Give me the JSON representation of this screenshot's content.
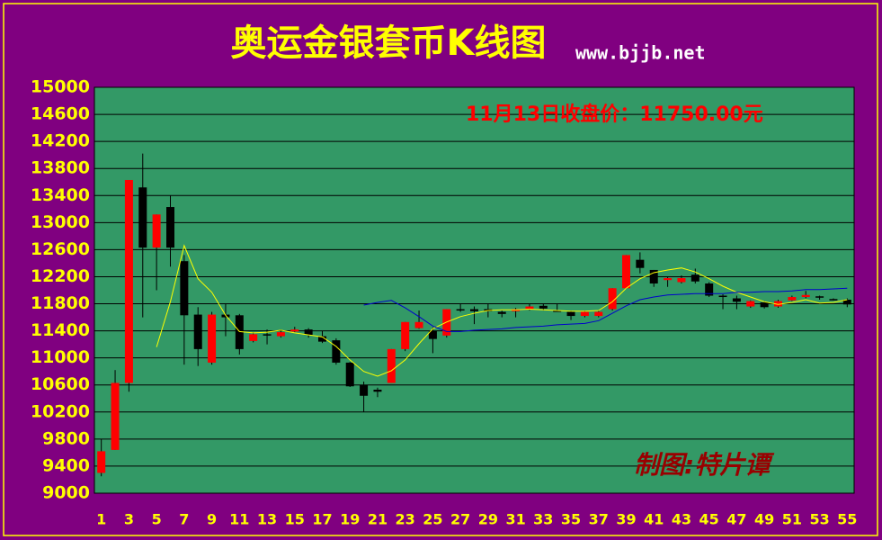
{
  "chart_data": {
    "type": "candlestick",
    "title": "奥运金银套币K线图",
    "site": "www.bjjb.net",
    "annotation": "11月13日收盘价：11750.00元",
    "watermark": "制图:特片谭",
    "categories": [
      "1",
      null,
      "3",
      null,
      "5",
      null,
      "7",
      null,
      "9",
      null,
      "11",
      null,
      "13",
      null,
      "15",
      null,
      "17",
      null,
      "19",
      null,
      "21",
      null,
      "23",
      null,
      "25",
      null,
      "27",
      null,
      "29",
      null,
      "31",
      null,
      "33",
      null,
      "35",
      null,
      "37",
      null,
      "39",
      null,
      "41",
      null,
      "43",
      null,
      "45",
      null,
      "47",
      null,
      "49",
      null,
      "51",
      null,
      "53",
      null,
      "55"
    ],
    "open": [
      9300,
      9640,
      10630,
      13520,
      12630,
      13230,
      12430,
      11640,
      10930,
      11640,
      11630,
      11250,
      11350,
      11320,
      11390,
      11420,
      11320,
      11260,
      10930,
      10600,
      10530,
      10630,
      11130,
      11440,
      11400,
      11330,
      11720,
      11720,
      11720,
      11680,
      11690,
      11720,
      11770,
      11700,
      11680,
      11620,
      11620,
      11720,
      12030,
      12450,
      12300,
      12150,
      12120,
      12230,
      12100,
      11920,
      11880,
      11760,
      11820,
      11760,
      11850,
      11900,
      11910,
      11870,
      11860
    ],
    "high": [
      9800,
      10820,
      13630,
      14020,
      13120,
      13400,
      12520,
      11750,
      11680,
      11800,
      11650,
      11380,
      11420,
      11420,
      11460,
      11440,
      11400,
      11290,
      10940,
      10650,
      10560,
      11130,
      11530,
      11700,
      11450,
      11720,
      11800,
      11760,
      11800,
      11700,
      11740,
      11800,
      11800,
      11800,
      11700,
      11700,
      11700,
      12030,
      12520,
      12560,
      12300,
      12200,
      12220,
      12320,
      12120,
      11940,
      11920,
      11850,
      11840,
      11860,
      11920,
      11990,
      11920,
      11880,
      11880
    ],
    "low": [
      9250,
      9640,
      10500,
      11600,
      12000,
      12350,
      10900,
      10880,
      10900,
      11320,
      11050,
      11230,
      11200,
      11300,
      11380,
      11300,
      11220,
      10900,
      10570,
      10200,
      10420,
      10630,
      11100,
      11430,
      11070,
      11300,
      11680,
      11500,
      11600,
      11600,
      11600,
      11700,
      11700,
      11680,
      11560,
      11600,
      11600,
      11700,
      12020,
      12250,
      12050,
      12050,
      12100,
      12100,
      11900,
      11720,
      11720,
      11740,
      11730,
      11740,
      11840,
      11880,
      11860,
      11850,
      11750
    ],
    "close": [
      9620,
      10630,
      13630,
      12630,
      13120,
      12630,
      11630,
      11130,
      11640,
      11600,
      11130,
      11350,
      11330,
      11380,
      11420,
      11340,
      11240,
      10930,
      10580,
      10440,
      10500,
      11130,
      11530,
      11530,
      11280,
      11720,
      11700,
      11690,
      11690,
      11650,
      11720,
      11760,
      11730,
      11690,
      11620,
      11680,
      11680,
      12030,
      12520,
      12330,
      12100,
      12180,
      12180,
      12130,
      11920,
      11900,
      11830,
      11840,
      11750,
      11840,
      11900,
      11930,
      11890,
      11860,
      11790
    ],
    "up_color": "#ff0000",
    "down_color": "#000000",
    "lines": [
      {
        "color": "#ffff00",
        "values": [
          null,
          null,
          null,
          null,
          11160,
          11830,
          12660,
          12170,
          11970,
          11630,
          11390,
          11370,
          11380,
          11410,
          11370,
          11340,
          11310,
          11170,
          10970,
          10800,
          10730,
          10810,
          10970,
          11210,
          11430,
          11530,
          11610,
          11660,
          11700,
          11710,
          11710,
          11720,
          11710,
          11700,
          11690,
          11690,
          11700,
          11830,
          12030,
          12170,
          12260,
          12300,
          12330,
          12270,
          12170,
          12060,
          11970,
          11900,
          11830,
          11790,
          11820,
          11860,
          11810,
          11820,
          11860
        ]
      },
      {
        "color": "#0000cc",
        "values": [
          null,
          null,
          null,
          null,
          null,
          null,
          null,
          null,
          null,
          null,
          null,
          null,
          null,
          null,
          null,
          null,
          null,
          null,
          null,
          11780,
          11820,
          11850,
          11740,
          11610,
          11470,
          11390,
          11390,
          11410,
          11420,
          11430,
          11450,
          11460,
          11470,
          11490,
          11500,
          11510,
          11550,
          11660,
          11770,
          11860,
          11900,
          11930,
          11940,
          11950,
          11950,
          11950,
          11970,
          11970,
          11980,
          11980,
          11990,
          12010,
          12010,
          12020,
          12030
        ]
      }
    ],
    "ylim": [
      9000,
      15000
    ],
    "yticks": [
      9000,
      9400,
      9800,
      10200,
      10600,
      11000,
      11400,
      11800,
      12200,
      12600,
      13000,
      13400,
      13800,
      14200,
      14600,
      15000
    ],
    "grid": true
  }
}
